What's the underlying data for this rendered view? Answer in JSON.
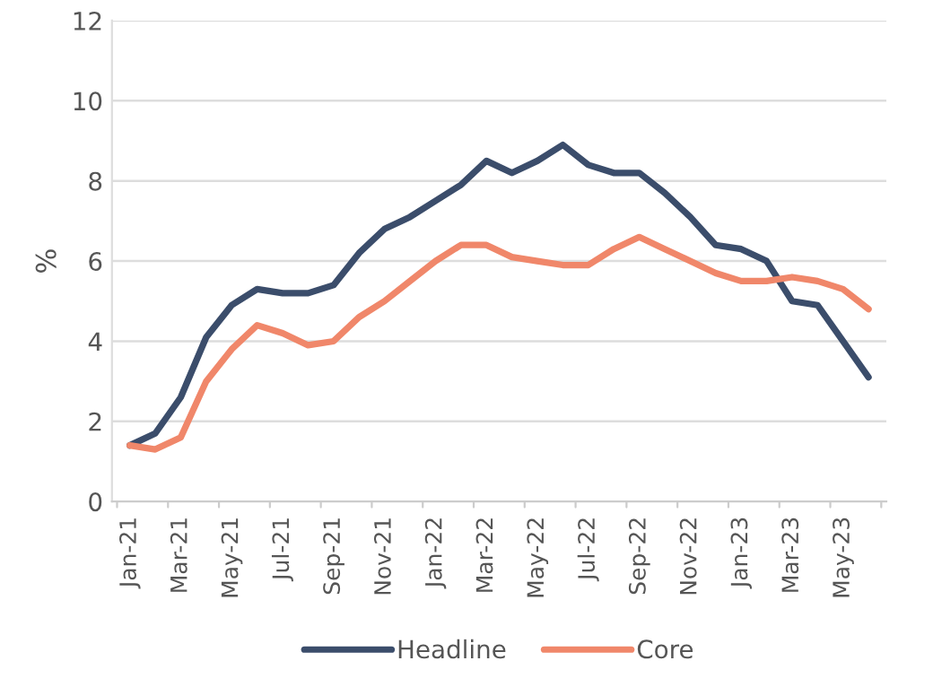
{
  "chart_data": {
    "type": "line",
    "ylabel": "%",
    "categories": [
      "Jan-21",
      null,
      "Mar-21",
      null,
      "May-21",
      null,
      "Jul-21",
      null,
      "Sep-21",
      null,
      "Nov-21",
      null,
      "Jan-22",
      null,
      "Mar-22",
      null,
      "May-22",
      null,
      "Jul-22",
      null,
      "Sep-22",
      null,
      "Nov-22",
      null,
      "Jan-23",
      null,
      "Mar-23",
      null,
      "May-23",
      null
    ],
    "series": [
      {
        "name": "Headline",
        "color": "#3b4d6b",
        "values": [
          1.4,
          1.7,
          2.6,
          4.1,
          4.9,
          5.3,
          5.2,
          5.2,
          5.4,
          6.2,
          6.8,
          7.1,
          7.5,
          7.9,
          8.5,
          8.2,
          8.5,
          8.9,
          8.4,
          8.2,
          8.2,
          7.7,
          7.1,
          6.4,
          6.3,
          6.0,
          5.0,
          4.9,
          4.0,
          3.1
        ]
      },
      {
        "name": "Core",
        "color": "#f0876a",
        "values": [
          1.4,
          1.3,
          1.6,
          3.0,
          3.8,
          4.4,
          4.2,
          3.9,
          4.0,
          4.6,
          5.0,
          5.5,
          6.0,
          6.4,
          6.4,
          6.1,
          6.0,
          5.9,
          5.9,
          6.3,
          6.6,
          6.3,
          6.0,
          5.7,
          5.5,
          5.5,
          5.6,
          5.5,
          5.3,
          4.8
        ]
      }
    ],
    "ylim": [
      0,
      12
    ],
    "yticks": [
      0,
      2,
      4,
      6,
      8,
      10,
      12
    ],
    "grid": "y",
    "legend": "bottom",
    "marker": "none",
    "line_style": "solid"
  }
}
